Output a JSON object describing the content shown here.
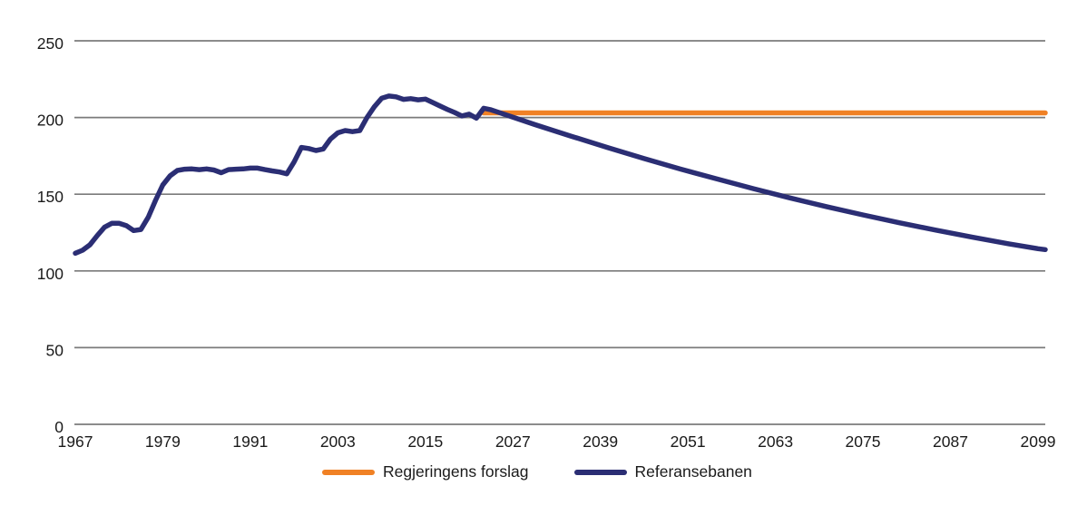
{
  "chart_data": {
    "type": "line",
    "title": "",
    "xlabel": "",
    "ylabel": "",
    "xlim": [
      1967,
      2100
    ],
    "ylim": [
      0,
      250
    ],
    "x_ticks": [
      1967,
      1979,
      1991,
      2003,
      2015,
      2027,
      2039,
      2051,
      2063,
      2075,
      2087,
      2099
    ],
    "y_ticks": [
      0,
      50,
      100,
      150,
      200,
      250
    ],
    "grid": "horizontal",
    "gridline_color": "#7b7b7b",
    "text_color": "#1a1a1a",
    "legend_position": "bottom",
    "series": [
      {
        "name": "Regjeringens forslag",
        "color": "#F08125",
        "points": [
          [
            2023,
            203
          ],
          [
            2100,
            203
          ]
        ]
      },
      {
        "name": "Referansebanen",
        "color": "#2B2E74",
        "points": [
          [
            1967,
            111.5
          ],
          [
            1968,
            113.5
          ],
          [
            1969,
            117
          ],
          [
            1970,
            123
          ],
          [
            1971,
            128.5
          ],
          [
            1972,
            131
          ],
          [
            1973,
            131
          ],
          [
            1974,
            129.5
          ],
          [
            1975,
            126.3
          ],
          [
            1976,
            127
          ],
          [
            1977,
            135
          ],
          [
            1978,
            146
          ],
          [
            1979,
            156
          ],
          [
            1980,
            162
          ],
          [
            1981,
            165.5
          ],
          [
            1982,
            166.3
          ],
          [
            1983,
            166.5
          ],
          [
            1984,
            166
          ],
          [
            1985,
            166.5
          ],
          [
            1986,
            165.8
          ],
          [
            1987,
            164
          ],
          [
            1988,
            166
          ],
          [
            1989,
            166.3
          ],
          [
            1990,
            166.5
          ],
          [
            1991,
            167
          ],
          [
            1992,
            167
          ],
          [
            1993,
            166
          ],
          [
            1994,
            165.2
          ],
          [
            1995,
            164.5
          ],
          [
            1996,
            163.3
          ],
          [
            1997,
            171
          ],
          [
            1998,
            180.5
          ],
          [
            1999,
            179.8
          ],
          [
            2000,
            178.5
          ],
          [
            2001,
            179.5
          ],
          [
            2002,
            186
          ],
          [
            2003,
            190
          ],
          [
            2004,
            191.5
          ],
          [
            2005,
            190.8
          ],
          [
            2006,
            191.5
          ],
          [
            2007,
            200
          ],
          [
            2008,
            207
          ],
          [
            2009,
            212.5
          ],
          [
            2010,
            214
          ],
          [
            2011,
            213.5
          ],
          [
            2012,
            211.8
          ],
          [
            2013,
            212.3
          ],
          [
            2014,
            211.5
          ],
          [
            2015,
            212
          ],
          [
            2016,
            209.8
          ],
          [
            2017,
            207.5
          ],
          [
            2018,
            205.3
          ],
          [
            2019,
            203.3
          ],
          [
            2020,
            201
          ],
          [
            2021,
            202.2
          ],
          [
            2022,
            199.6
          ],
          [
            2023,
            206
          ],
          [
            2024,
            205
          ],
          [
            2025,
            203.4
          ],
          [
            2030,
            195.4
          ],
          [
            2035,
            187.8
          ],
          [
            2040,
            180.4
          ],
          [
            2045,
            173.2
          ],
          [
            2050,
            166.4
          ],
          [
            2055,
            159.9
          ],
          [
            2060,
            153.6
          ],
          [
            2065,
            147.6
          ],
          [
            2070,
            141.9
          ],
          [
            2075,
            136.5
          ],
          [
            2080,
            131.4
          ],
          [
            2085,
            126.6
          ],
          [
            2090,
            122
          ],
          [
            2095,
            117.7
          ],
          [
            2099,
            114.5
          ],
          [
            2100,
            113.9
          ]
        ]
      }
    ]
  },
  "legend": {
    "items": [
      {
        "label": "Regjeringens forslag"
      },
      {
        "label": "Referansebanen"
      }
    ]
  }
}
